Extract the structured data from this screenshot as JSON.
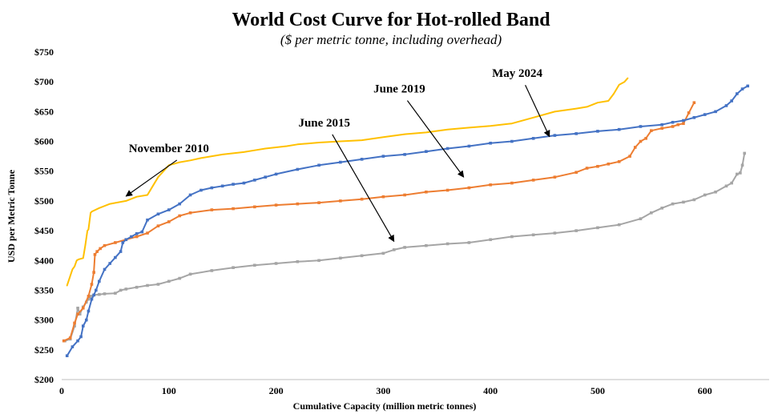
{
  "chart_data": {
    "type": "line",
    "title": "World Cost Curve for Hot-rolled Band",
    "subtitle": "($ per metric tonne, including overhead)",
    "xlabel": "Cumulative Capacity (million metric tonnes)",
    "ylabel": "USD per Metric Tonne",
    "xlim": [
      0,
      660
    ],
    "ylim": [
      200,
      750
    ],
    "x_ticks": [
      0,
      100,
      200,
      300,
      400,
      500,
      600
    ],
    "x_tick_labels": [
      "0",
      "100",
      "200",
      "300",
      "400",
      "500",
      "600"
    ],
    "y_ticks": [
      200,
      250,
      300,
      350,
      400,
      450,
      500,
      550,
      600,
      650,
      700,
      750
    ],
    "y_tick_labels": [
      "$200",
      "$250",
      "$300",
      "$350",
      "$400",
      "$450",
      "$500",
      "$550",
      "$600",
      "$650",
      "$700",
      "$750"
    ],
    "grid": false,
    "series": [
      {
        "name": "November 2010",
        "color": "#FFC000",
        "marker": false,
        "x": [
          5,
          10,
          12,
          14,
          16,
          20,
          22,
          24,
          25,
          27,
          28,
          29,
          35,
          45,
          60,
          70,
          80,
          85,
          90,
          95,
          100,
          110,
          120,
          130,
          140,
          150,
          160,
          170,
          180,
          190,
          200,
          210,
          220,
          240,
          260,
          280,
          300,
          320,
          340,
          360,
          380,
          400,
          420,
          440,
          460,
          480,
          490,
          500,
          510,
          515,
          520,
          525,
          528
        ],
        "y": [
          358,
          385,
          390,
          400,
          402,
          404,
          425,
          450,
          452,
          480,
          482,
          483,
          488,
          495,
          500,
          507,
          510,
          525,
          540,
          550,
          560,
          565,
          568,
          572,
          575,
          578,
          580,
          582,
          585,
          588,
          590,
          592,
          595,
          598,
          600,
          602,
          607,
          612,
          615,
          620,
          623,
          626,
          630,
          640,
          650,
          655,
          658,
          665,
          668,
          680,
          695,
          700,
          706
        ]
      },
      {
        "name": "June 2015",
        "color": "#A5A5A5",
        "marker": true,
        "x": [
          3,
          8,
          12,
          15,
          17,
          20,
          23,
          25,
          27,
          30,
          35,
          40,
          50,
          55,
          60,
          70,
          80,
          90,
          100,
          110,
          120,
          140,
          160,
          180,
          200,
          220,
          240,
          260,
          280,
          300,
          310,
          320,
          340,
          360,
          380,
          400,
          420,
          440,
          460,
          480,
          500,
          520,
          540,
          550,
          560,
          570,
          580,
          590,
          600,
          610,
          620,
          625,
          630,
          633,
          635,
          637
        ],
        "y": [
          265,
          268,
          290,
          320,
          310,
          322,
          330,
          335,
          340,
          342,
          343,
          344,
          345,
          350,
          352,
          355,
          358,
          360,
          365,
          370,
          377,
          383,
          388,
          392,
          395,
          398,
          400,
          404,
          408,
          412,
          418,
          422,
          425,
          428,
          430,
          435,
          440,
          443,
          446,
          450,
          455,
          460,
          470,
          480,
          488,
          495,
          498,
          502,
          510,
          515,
          525,
          530,
          545,
          547,
          560,
          580
        ]
      },
      {
        "name": "June 2019",
        "color": "#ED7D31",
        "marker": true,
        "x": [
          2,
          8,
          12,
          15,
          20,
          25,
          28,
          30,
          31,
          33,
          36,
          40,
          50,
          60,
          70,
          80,
          90,
          100,
          110,
          120,
          140,
          160,
          180,
          200,
          220,
          240,
          260,
          280,
          300,
          320,
          340,
          360,
          380,
          400,
          420,
          440,
          460,
          480,
          490,
          500,
          510,
          520,
          530,
          535,
          540,
          545,
          550,
          560,
          570,
          575,
          580,
          585,
          590
        ],
        "y": [
          265,
          270,
          295,
          310,
          320,
          340,
          360,
          380,
          410,
          415,
          420,
          425,
          430,
          435,
          440,
          446,
          458,
          465,
          475,
          480,
          485,
          487,
          490,
          493,
          495,
          497,
          500,
          503,
          507,
          510,
          515,
          518,
          522,
          527,
          530,
          535,
          540,
          548,
          555,
          558,
          562,
          566,
          575,
          590,
          600,
          605,
          618,
          622,
          625,
          628,
          630,
          648,
          665
        ]
      },
      {
        "name": "May 2024",
        "color": "#4472C4",
        "marker": true,
        "x": [
          5,
          10,
          15,
          18,
          20,
          23,
          25,
          28,
          30,
          32,
          35,
          40,
          45,
          50,
          55,
          57,
          60,
          65,
          70,
          75,
          80,
          90,
          100,
          110,
          120,
          130,
          140,
          150,
          160,
          170,
          180,
          190,
          200,
          220,
          240,
          260,
          280,
          300,
          320,
          340,
          360,
          380,
          400,
          420,
          440,
          460,
          480,
          500,
          520,
          540,
          560,
          570,
          580,
          590,
          600,
          610,
          620,
          625,
          630,
          635,
          640
        ],
        "y": [
          240,
          255,
          265,
          272,
          290,
          300,
          315,
          335,
          342,
          350,
          365,
          385,
          395,
          405,
          415,
          430,
          435,
          440,
          445,
          448,
          468,
          478,
          485,
          495,
          510,
          518,
          522,
          525,
          528,
          530,
          535,
          540,
          545,
          553,
          560,
          565,
          570,
          575,
          578,
          583,
          588,
          592,
          597,
          600,
          605,
          610,
          613,
          617,
          620,
          625,
          628,
          632,
          635,
          640,
          645,
          650,
          660,
          668,
          680,
          688,
          693
        ]
      }
    ],
    "annotations": [
      {
        "text": "November 2010",
        "series": "November 2010",
        "text_x": 100,
        "text_y": 582,
        "arrow_to_x": 60,
        "arrow_to_y": 508
      },
      {
        "text": "June 2015",
        "series": "June 2015",
        "text_x": 245,
        "text_y": 625,
        "arrow_to_x": 310,
        "arrow_to_y": 432
      },
      {
        "text": "June 2019",
        "series": "June 2019",
        "text_x": 315,
        "text_y": 682,
        "arrow_to_x": 375,
        "arrow_to_y": 540
      },
      {
        "text": "May 2024",
        "series": "May 2024",
        "text_x": 425,
        "text_y": 708,
        "arrow_to_x": 455,
        "arrow_to_y": 608
      }
    ]
  }
}
